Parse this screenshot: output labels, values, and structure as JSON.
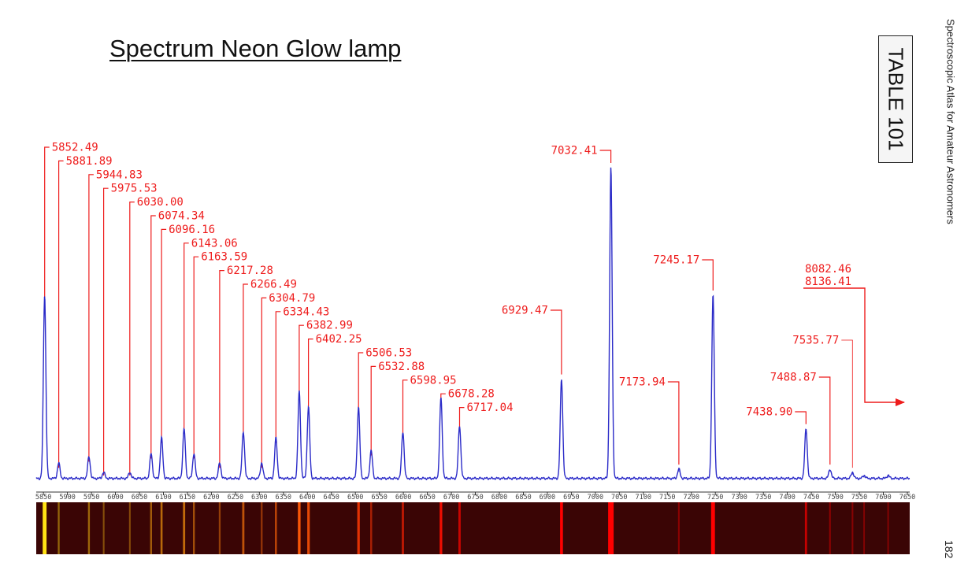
{
  "page": {
    "title": "Spectrum Neon Glow lamp",
    "table_label": "TABLE 101",
    "side_title": "Spectroscopic Atlas for Amateur Astronomers",
    "page_number": "182"
  },
  "colors": {
    "spectrum_line": "#2b2bc8",
    "annotation": "#ee1c1c",
    "axis": "#333333",
    "strip_background": "#3a0505"
  },
  "chart_data": {
    "type": "line",
    "title": "Spectrum Neon Glow lamp",
    "xlabel": "",
    "ylabel": "",
    "xlim": [
      5835,
      7655
    ],
    "ylim": [
      0,
      1
    ],
    "grid": false,
    "x_ticks": [
      5850,
      5900,
      5950,
      6000,
      6050,
      6100,
      6150,
      6200,
      6250,
      6300,
      6350,
      6400,
      6450,
      6500,
      6550,
      6600,
      6650,
      6700,
      6750,
      6800,
      6850,
      6900,
      6950,
      7000,
      7050,
      7100,
      7150,
      7200,
      7250,
      7300,
      7350,
      7400,
      7450,
      7500,
      7550,
      7600,
      7650
    ],
    "series": [
      {
        "values_note": "emission lines",
        "lines": [
          {
            "x": 5852.49,
            "y": 0.59
          },
          {
            "x": 5881.89,
            "y": 0.05
          },
          {
            "x": 5944.83,
            "y": 0.07
          },
          {
            "x": 5975.53,
            "y": 0.02
          },
          {
            "x": 6030.0,
            "y": 0.02
          },
          {
            "x": 6074.34,
            "y": 0.08
          },
          {
            "x": 6096.16,
            "y": 0.13
          },
          {
            "x": 6143.06,
            "y": 0.16
          },
          {
            "x": 6163.59,
            "y": 0.08
          },
          {
            "x": 6217.28,
            "y": 0.05
          },
          {
            "x": 6266.49,
            "y": 0.15
          },
          {
            "x": 6304.79,
            "y": 0.05
          },
          {
            "x": 6334.43,
            "y": 0.13
          },
          {
            "x": 6382.99,
            "y": 0.28
          },
          {
            "x": 6402.25,
            "y": 0.23
          },
          {
            "x": 6506.53,
            "y": 0.23
          },
          {
            "x": 6532.88,
            "y": 0.09
          },
          {
            "x": 6598.95,
            "y": 0.15
          },
          {
            "x": 6678.28,
            "y": 0.26
          },
          {
            "x": 6717.04,
            "y": 0.17
          },
          {
            "x": 6929.47,
            "y": 0.32
          },
          {
            "x": 7032.41,
            "y": 1.0
          },
          {
            "x": 7173.94,
            "y": 0.03
          },
          {
            "x": 7245.17,
            "y": 0.59
          },
          {
            "x": 7438.9,
            "y": 0.16
          },
          {
            "x": 7488.87,
            "y": 0.03
          },
          {
            "x": 7535.77,
            "y": 0.02
          },
          {
            "x": 7560.0,
            "y": 0.01
          },
          {
            "x": 7610.0,
            "y": 0.01
          }
        ]
      }
    ],
    "annotations": [
      {
        "label": "5852.49",
        "x": 5852.49,
        "side": "right"
      },
      {
        "label": "5881.89",
        "x": 5881.89,
        "side": "right"
      },
      {
        "label": "5944.83",
        "x": 5944.83,
        "side": "right"
      },
      {
        "label": "5975.53",
        "x": 5975.53,
        "side": "right"
      },
      {
        "label": "6030.00",
        "x": 6030.0,
        "side": "right"
      },
      {
        "label": "6074.34",
        "x": 6074.34,
        "side": "right"
      },
      {
        "label": "6096.16",
        "x": 6096.16,
        "side": "right"
      },
      {
        "label": "6143.06",
        "x": 6143.06,
        "side": "right"
      },
      {
        "label": "6163.59",
        "x": 6163.59,
        "side": "right"
      },
      {
        "label": "6217.28",
        "x": 6217.28,
        "side": "right"
      },
      {
        "label": "6266.49",
        "x": 6266.49,
        "side": "right"
      },
      {
        "label": "6304.79",
        "x": 6304.79,
        "side": "right"
      },
      {
        "label": "6334.43",
        "x": 6334.43,
        "side": "right"
      },
      {
        "label": "6382.99",
        "x": 6382.99,
        "side": "right"
      },
      {
        "label": "6402.25",
        "x": 6402.25,
        "side": "right"
      },
      {
        "label": "6506.53",
        "x": 6506.53,
        "side": "right"
      },
      {
        "label": "6532.88",
        "x": 6532.88,
        "side": "right"
      },
      {
        "label": "6598.95",
        "x": 6598.95,
        "side": "right"
      },
      {
        "label": "6678.28",
        "x": 6678.28,
        "side": "right"
      },
      {
        "label": "6717.04",
        "x": 6717.04,
        "side": "right"
      },
      {
        "label": "6929.47",
        "x": 6929.47,
        "side": "left"
      },
      {
        "label": "7032.41",
        "x": 7032.41,
        "side": "left"
      },
      {
        "label": "7173.94",
        "x": 7173.94,
        "side": "left"
      },
      {
        "label": "7245.17",
        "x": 7245.17,
        "side": "left"
      },
      {
        "label": "7438.90",
        "x": 7438.9,
        "side": "left"
      },
      {
        "label": "7488.87",
        "x": 7488.87,
        "side": "left"
      },
      {
        "label": "7535.77",
        "x": 7535.77,
        "side": "left"
      }
    ],
    "offscale_note": {
      "labels": [
        "8082.46",
        "8136.41"
      ],
      "direction": "right"
    }
  }
}
